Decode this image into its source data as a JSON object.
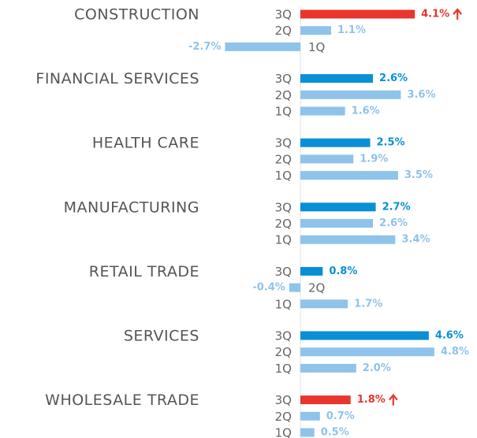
{
  "chart_data": {
    "type": "bar",
    "orientation": "horizontal",
    "categories": [
      "CONSTRUCTION",
      "FINANCIAL SERVICES",
      "HEALTH CARE",
      "MANUFACTURING",
      "RETAIL TRADE",
      "SERVICES",
      "WHOLESALE TRADE"
    ],
    "series": [
      {
        "name": "3Q",
        "color": "#0a8fd6",
        "values": [
          4.1,
          2.6,
          2.5,
          2.7,
          0.8,
          4.6,
          1.8
        ],
        "value_labels": [
          "4.1%",
          "2.6%",
          "2.5%",
          "2.7%",
          "0.8%",
          "4.6%",
          "1.8%"
        ],
        "highlighted": [
          true,
          false,
          false,
          false,
          false,
          false,
          true
        ],
        "highlight_color": "#e8352e"
      },
      {
        "name": "2Q",
        "color": "#8fc3ea",
        "values": [
          1.1,
          3.6,
          1.9,
          2.6,
          -0.4,
          4.8,
          0.7
        ],
        "value_labels": [
          "1.1%",
          "3.6%",
          "1.9%",
          "2.6%",
          "-0.4%",
          "4.8%",
          "0.7%"
        ]
      },
      {
        "name": "1Q",
        "color": "#8fc3ea",
        "values": [
          -2.7,
          1.6,
          3.5,
          3.4,
          1.7,
          2.0,
          0.5
        ],
        "value_labels": [
          "-2.7%",
          "1.6%",
          "3.5%",
          "3.4%",
          "1.7%",
          "2.0%",
          "0.5%"
        ]
      }
    ]
  }
}
